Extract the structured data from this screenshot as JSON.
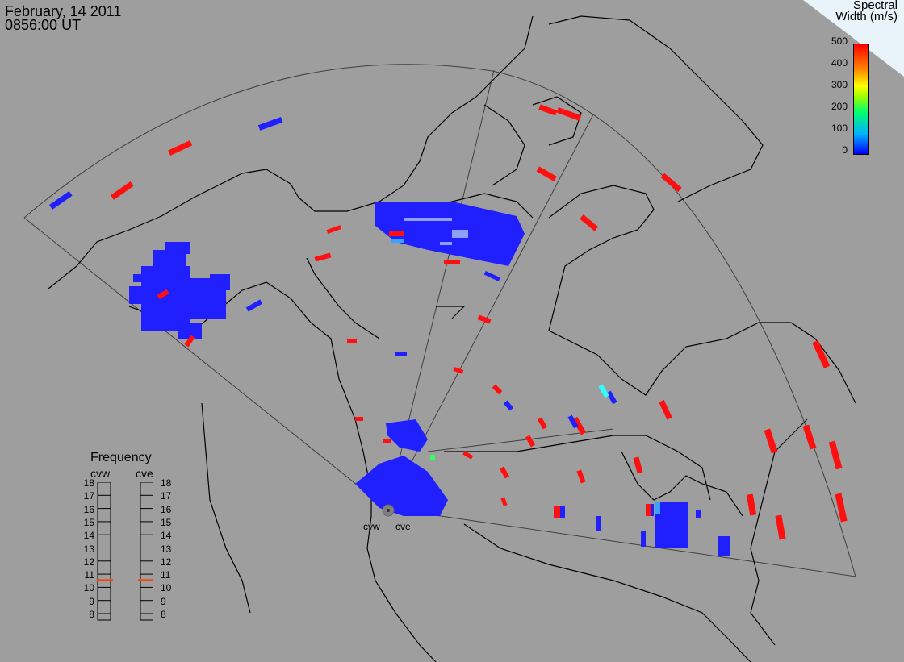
{
  "header": {
    "date": "February, 14 2011",
    "time": "0856:00 UT"
  },
  "colorbar": {
    "title_line1": "Spectral",
    "title_line2": "Width (m/s)",
    "ticks": [
      "500",
      "400",
      "300",
      "200",
      "100",
      "0"
    ]
  },
  "frequency": {
    "title": "Frequency",
    "radars": [
      "cvw",
      "cve"
    ],
    "scale": [
      "18",
      "17",
      "16",
      "15",
      "14",
      "13",
      "12",
      "11",
      "10",
      "9",
      "8"
    ],
    "current_mhz": {
      "cvw": 10.8,
      "cve": 10.8
    }
  },
  "radar_labels": {
    "west": "cvw",
    "east": "cve"
  },
  "colors": {
    "background": "#9e9e9e",
    "low_width": "#2020ff",
    "high_width": "#ff1010",
    "coast": "#000000"
  }
}
